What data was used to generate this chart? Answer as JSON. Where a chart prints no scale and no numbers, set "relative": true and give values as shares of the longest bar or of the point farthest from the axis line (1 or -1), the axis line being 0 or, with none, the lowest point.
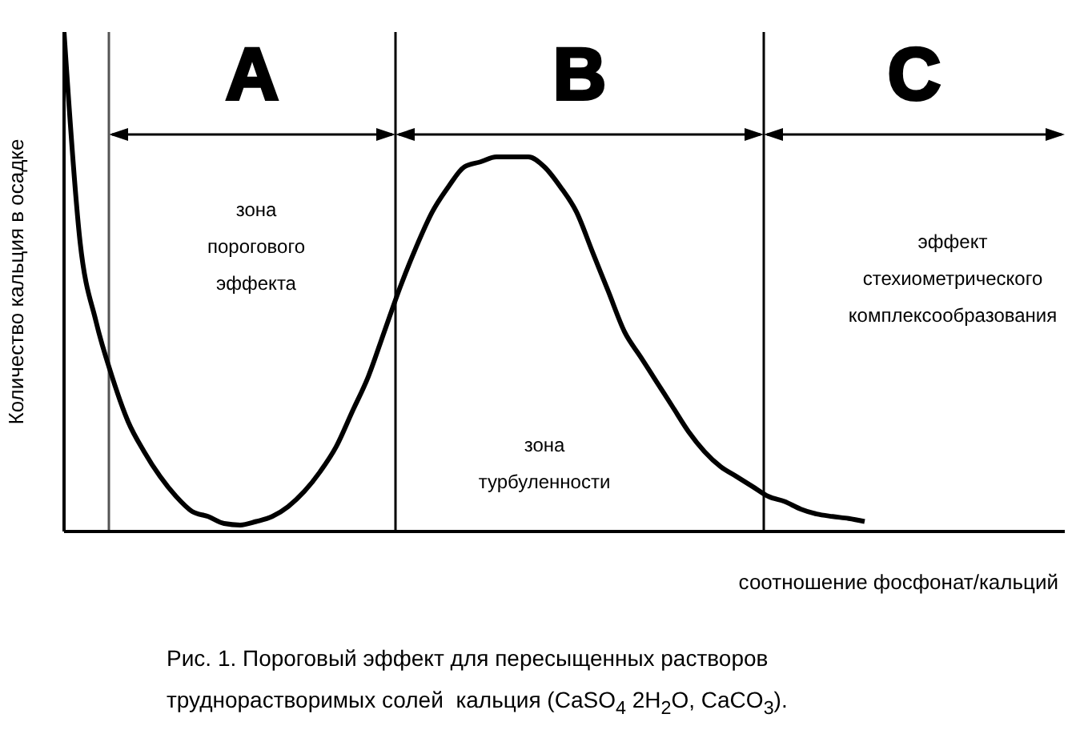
{
  "chart_data": {
    "type": "line",
    "relative": true,
    "xlabel": "соотношение фосфонат/кальций",
    "ylabel": "Количество кальция в осадке",
    "categories": [
      null,
      null,
      null,
      null,
      null,
      null,
      null,
      null,
      null,
      null,
      null,
      null,
      null,
      null,
      null,
      null,
      null,
      null,
      null,
      null,
      null,
      null,
      null,
      null,
      null,
      null,
      null,
      null,
      null,
      null,
      null,
      null,
      null,
      null,
      null,
      null,
      null,
      null,
      null,
      null,
      null,
      null,
      null,
      null,
      null,
      null,
      null,
      null,
      null,
      null,
      null,
      null,
      null,
      null,
      null,
      null,
      null,
      null,
      null,
      null,
      null,
      null,
      null
    ],
    "series": [
      {
        "color": "#000000",
        "values": [
          1.0,
          0.58,
          0.42,
          0.31,
          0.22,
          0.16,
          0.11,
          0.07,
          0.04,
          0.03,
          0.016,
          0.013,
          0.02,
          0.03,
          0.05,
          0.08,
          0.12,
          0.17,
          0.24,
          0.31,
          0.4,
          0.49,
          0.57,
          0.64,
          0.69,
          0.73,
          0.74,
          0.75,
          0.75,
          0.75,
          0.73,
          0.69,
          0.64,
          0.56,
          0.48,
          0.4,
          0.35,
          0.3,
          0.25,
          0.2,
          0.16,
          0.13,
          0.11,
          0.09,
          0.07,
          0.06,
          0.045,
          0.035,
          0.03,
          0.026,
          0.02,
          null,
          null,
          null,
          null,
          null,
          null,
          null,
          null,
          null,
          null,
          null,
          null
        ]
      }
    ],
    "annotations": [
      "A",
      "B",
      "C",
      "зона\nпорогового\nэффекта",
      "зона\nтурбуленности",
      "эффект\nстехиометрического\nкомплексообразования",
      "Рис. 1. Пороговый эффект для пересыщенных растворов\nтруднорастворимых солей  кальция (CaSO$_{4}$ 2H$_{2}$O, CaCO$_{3}$)."
    ]
  }
}
